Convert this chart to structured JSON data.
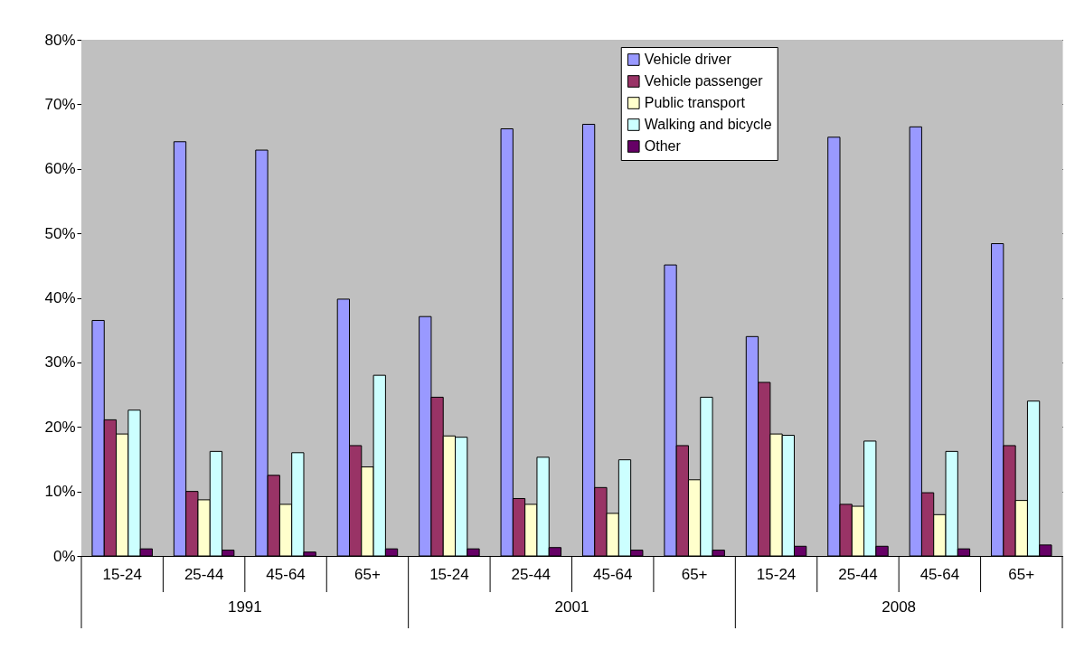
{
  "chart_data": {
    "type": "bar",
    "categories": [
      "15-24",
      "25-44",
      "45-64",
      "65+",
      "15-24",
      "25-44",
      "45-64",
      "65+",
      "15-24",
      "25-44",
      "45-64",
      "65+"
    ],
    "series": [
      {
        "name": "Vehicle driver",
        "color": "#9999ff",
        "values": [
          36.5,
          64.2,
          62.9,
          39.8,
          37.1,
          66.2,
          66.9,
          45.1,
          34.0,
          64.9,
          66.5,
          48.4
        ]
      },
      {
        "name": "Vehicle passenger",
        "color": "#993366",
        "values": [
          21.1,
          10.0,
          12.5,
          17.1,
          24.6,
          8.9,
          10.6,
          17.1,
          26.9,
          8.0,
          9.8,
          17.1
        ]
      },
      {
        "name": "Public transport",
        "color": "#ffffcc",
        "values": [
          18.9,
          8.7,
          8.0,
          13.8,
          18.6,
          8.0,
          6.6,
          11.8,
          18.9,
          7.7,
          6.4,
          8.6
        ]
      },
      {
        "name": "Walking and bicycle",
        "color": "#ccffff",
        "values": [
          22.6,
          16.2,
          16.0,
          28.0,
          18.4,
          15.3,
          14.9,
          24.6,
          18.7,
          17.8,
          16.2,
          24.0
        ]
      },
      {
        "name": "Other",
        "color": "#660066",
        "values": [
          1.1,
          0.9,
          0.6,
          1.1,
          1.1,
          1.3,
          0.9,
          0.9,
          1.5,
          1.5,
          1.1,
          1.7
        ]
      }
    ],
    "ylim": [
      0,
      80
    ],
    "yticks": [
      {
        "value": 0,
        "label": "0%"
      },
      {
        "value": 10,
        "label": "10%"
      },
      {
        "value": 20,
        "label": "20%"
      },
      {
        "value": 30,
        "label": "30%"
      },
      {
        "value": 40,
        "label": "40%"
      },
      {
        "value": 50,
        "label": "50%"
      },
      {
        "value": 60,
        "label": "60%"
      },
      {
        "value": 70,
        "label": "70%"
      },
      {
        "value": 80,
        "label": "80%"
      }
    ],
    "annotations": [
      "1991",
      "2001",
      "2008"
    ],
    "grid": "y",
    "legend": "top right"
  }
}
